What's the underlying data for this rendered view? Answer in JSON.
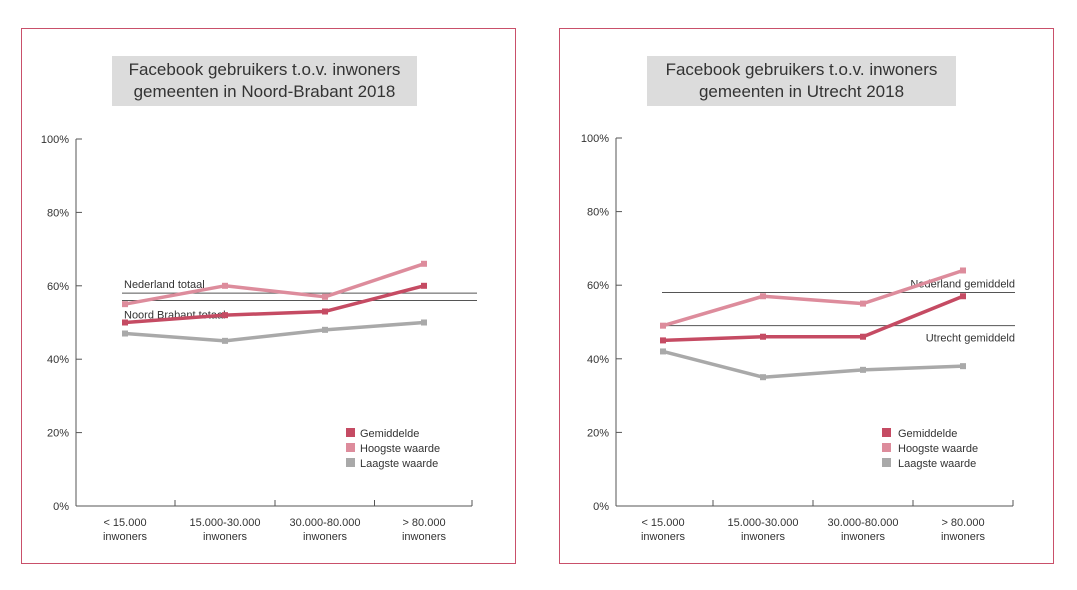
{
  "chart_data": [
    {
      "type": "line",
      "title_line1": "Facebook gebruikers t.o.v. inwoners",
      "title_line2": "gemeenten in Noord-Brabant 2018",
      "categories": [
        {
          "line1": "< 15.000",
          "line2": "inwoners"
        },
        {
          "line1": "15.000-30.000",
          "line2": "inwoners"
        },
        {
          "line1": "30.000-80.000",
          "line2": "inwoners"
        },
        {
          "line1": "> 80.000",
          "line2": "inwoners"
        }
      ],
      "y_ticks": [
        "0%",
        "20%",
        "40%",
        "60%",
        "80%",
        "100%"
      ],
      "ylim": [
        0,
        100
      ],
      "series": [
        {
          "name": "Gemiddelde",
          "color": "#c54b63",
          "values": [
            50,
            52,
            53,
            60
          ]
        },
        {
          "name": "Hoogste waarde",
          "color": "#dd8c9c",
          "values": [
            55,
            60,
            57,
            66
          ]
        },
        {
          "name": "Laagste waarde",
          "color": "#a9a9a9",
          "values": [
            47,
            45,
            48,
            50
          ]
        }
      ],
      "reference_lines": [
        {
          "label": "Nederland totaal",
          "value": 58,
          "label_position": "above"
        },
        {
          "label": "Noord Brabant totaal",
          "value": 56,
          "label_position": "below"
        }
      ],
      "legend": "bottom-right"
    },
    {
      "type": "line",
      "title_line1": "Facebook gebruikers t.o.v. inwoners",
      "title_line2": "gemeenten in Utrecht 2018",
      "categories": [
        {
          "line1": "< 15.000",
          "line2": "inwoners"
        },
        {
          "line1": "15.000-30.000",
          "line2": "inwoners"
        },
        {
          "line1": "30.000-80.000",
          "line2": "inwoners"
        },
        {
          "line1": "> 80.000",
          "line2": "inwoners"
        }
      ],
      "y_ticks": [
        "0%",
        "20%",
        "40%",
        "60%",
        "80%",
        "100%"
      ],
      "ylim": [
        0,
        100
      ],
      "series": [
        {
          "name": "Gemiddelde",
          "color": "#c54b63",
          "values": [
            45,
            46,
            46,
            57
          ]
        },
        {
          "name": "Hoogste waarde",
          "color": "#dd8c9c",
          "values": [
            49,
            57,
            55,
            64
          ]
        },
        {
          "name": "Laagste waarde",
          "color": "#a9a9a9",
          "values": [
            42,
            35,
            37,
            38
          ]
        }
      ],
      "reference_lines": [
        {
          "label": "Nederland gemiddeld",
          "value": 58,
          "label_position": "above"
        },
        {
          "label": "Utrecht gemiddeld",
          "value": 49,
          "label_position": "below"
        }
      ],
      "legend": "bottom-right"
    }
  ]
}
